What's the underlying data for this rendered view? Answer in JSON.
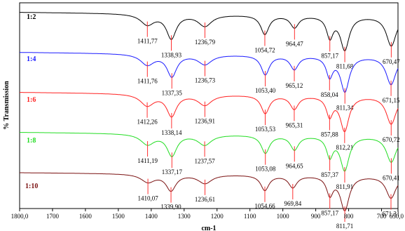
{
  "chart_data": {
    "type": "line",
    "title": "",
    "xlabel": "cm-1",
    "ylabel": "% Transmission",
    "xlim": [
      1800,
      650
    ],
    "x_reversed": true,
    "x_ticks": [
      "1800,0",
      "1700",
      "1600",
      "1500",
      "1400",
      "1300",
      "1200",
      "1100",
      "1000",
      "900",
      "800",
      "700",
      "650,0"
    ],
    "x_tick_values": [
      1800,
      1700,
      1600,
      1500,
      1400,
      1300,
      1200,
      1100,
      1000,
      900,
      800,
      700,
      650
    ],
    "grid": false,
    "legend": "none",
    "series": [
      {
        "name": "1:2",
        "color": "#000000",
        "baseline": 0.95,
        "peaks": [
          {
            "x": 1411.77,
            "label": "1411,77",
            "depth": 0.22,
            "width": 25
          },
          {
            "x": 1338.93,
            "label": "1338,93",
            "depth": 0.5,
            "width": 18
          },
          {
            "x": 1236.79,
            "label": "1236,79",
            "depth": 0.24,
            "width": 25
          },
          {
            "x": 1054.72,
            "label": "1054,72",
            "depth": 0.4,
            "width": 15
          },
          {
            "x": 964.47,
            "label": "964,47",
            "depth": 0.25,
            "width": 15
          },
          {
            "x": 857.17,
            "label": "857,17",
            "depth": 0.43,
            "width": 12
          },
          {
            "x": 811.68,
            "label": "811,68",
            "depth": 0.7,
            "width": 16
          },
          {
            "x": 670.47,
            "label": "670,47",
            "depth": 0.62,
            "width": 18
          }
        ]
      },
      {
        "name": "1:4",
        "color": "#1a1aff",
        "baseline": 0.95,
        "peaks": [
          {
            "x": 1411.76,
            "label": "1411,76",
            "depth": 0.22,
            "width": 25
          },
          {
            "x": 1337.35,
            "label": "1337,35",
            "depth": 0.45,
            "width": 18
          },
          {
            "x": 1236.73,
            "label": "1236,73",
            "depth": 0.2,
            "width": 25
          },
          {
            "x": 1053.4,
            "label": "1053,40",
            "depth": 0.4,
            "width": 15
          },
          {
            "x": 965.12,
            "label": "965,12",
            "depth": 0.28,
            "width": 15
          },
          {
            "x": 858.04,
            "label": "858,04",
            "depth": 0.4,
            "width": 12
          },
          {
            "x": 811.34,
            "label": "811,34",
            "depth": 0.72,
            "width": 16
          },
          {
            "x": 671.15,
            "label": "671,15",
            "depth": 0.58,
            "width": 18
          }
        ]
      },
      {
        "name": "1:6",
        "color": "#ff2020",
        "baseline": 0.95,
        "peaks": [
          {
            "x": 1412.26,
            "label": "1412,26",
            "depth": 0.24,
            "width": 25
          },
          {
            "x": 1338.14,
            "label": "1338,14",
            "depth": 0.45,
            "width": 18
          },
          {
            "x": 1236.91,
            "label": "1236,91",
            "depth": 0.22,
            "width": 25
          },
          {
            "x": 1053.53,
            "label": "1053,53",
            "depth": 0.38,
            "width": 15
          },
          {
            "x": 965.31,
            "label": "965,31",
            "depth": 0.28,
            "width": 15
          },
          {
            "x": 857.88,
            "label": "857,88",
            "depth": 0.4,
            "width": 12
          },
          {
            "x": 812.21,
            "label": "812,21",
            "depth": 0.72,
            "width": 16
          },
          {
            "x": 670.72,
            "label": "670,72",
            "depth": 0.58,
            "width": 18
          }
        ]
      },
      {
        "name": "1:8",
        "color": "#22dd22",
        "baseline": 0.95,
        "peaks": [
          {
            "x": 1411.19,
            "label": "1411,19",
            "depth": 0.22,
            "width": 25
          },
          {
            "x": 1337.17,
            "label": "1337,17",
            "depth": 0.45,
            "width": 18
          },
          {
            "x": 1237.57,
            "label": "1237,57",
            "depth": 0.22,
            "width": 25
          },
          {
            "x": 1053.08,
            "label": "1053,08",
            "depth": 0.38,
            "width": 15
          },
          {
            "x": 964.65,
            "label": "964,65",
            "depth": 0.3,
            "width": 15
          },
          {
            "x": 857.37,
            "label": "857,37",
            "depth": 0.42,
            "width": 12
          },
          {
            "x": 811.91,
            "label": "811,91",
            "depth": 0.72,
            "width": 16
          },
          {
            "x": 670.41,
            "label": "670,41",
            "depth": 0.55,
            "width": 18
          }
        ]
      },
      {
        "name": "1:10",
        "color": "#7a1010",
        "baseline": 0.95,
        "peaks": [
          {
            "x": 1410.07,
            "label": "1410,07",
            "depth": 0.2,
            "width": 25
          },
          {
            "x": 1339.9,
            "label": "1339,90",
            "depth": 0.4,
            "width": 18
          },
          {
            "x": 1236.61,
            "label": "1236,61",
            "depth": 0.22,
            "width": 25
          },
          {
            "x": 1054.66,
            "label": "1054,66",
            "depth": 0.38,
            "width": 15
          },
          {
            "x": 969.84,
            "label": "969,84",
            "depth": 0.3,
            "width": 15
          },
          {
            "x": 857.17,
            "label": "857,17",
            "depth": 0.45,
            "width": 12
          },
          {
            "x": 811.71,
            "label": "811,71",
            "depth": 0.85,
            "width": 16
          },
          {
            "x": 671.31,
            "label": "671,31",
            "depth": 0.55,
            "width": 18
          }
        ]
      }
    ]
  }
}
